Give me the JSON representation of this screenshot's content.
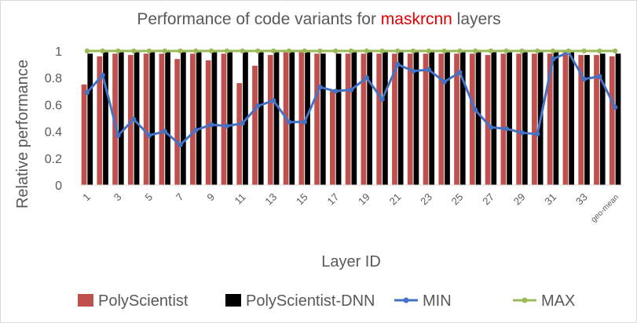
{
  "chart_data": {
    "type": "bar",
    "title_prefix": "Performance of code variants for ",
    "title_highlight": "maskrcnn",
    "title_suffix": " layers",
    "xlabel": "Layer ID",
    "ylabel": "Relative performance",
    "ylim": [
      0,
      1
    ],
    "yticks": [
      0,
      0.2,
      0.4,
      0.6,
      0.8,
      1
    ],
    "ytick_labels": [
      "0",
      "0.2",
      "0.4",
      "0.6",
      "0.8",
      "1"
    ],
    "grid": false,
    "legend_position": "bottom",
    "categories": [
      "1",
      "2",
      "3",
      "4",
      "5",
      "6",
      "7",
      "8",
      "9",
      "10",
      "11",
      "12",
      "13",
      "14",
      "15",
      "16",
      "17",
      "18",
      "19",
      "20",
      "21",
      "22",
      "23",
      "24",
      "25",
      "26",
      "27",
      "28",
      "29",
      "30",
      "31",
      "32",
      "33",
      "34",
      "geo-mean"
    ],
    "xtick_labels": [
      "1",
      "",
      "3",
      "",
      "5",
      "",
      "7",
      "",
      "9",
      "",
      "11",
      "",
      "13",
      "",
      "15",
      "",
      "17",
      "",
      "19",
      "",
      "21",
      "",
      "23",
      "",
      "25",
      "",
      "27",
      "",
      "29",
      "",
      "31",
      "",
      "33",
      "",
      "geo-mean"
    ],
    "series": [
      {
        "name": "PolyScientist",
        "kind": "bar",
        "color": "#c0504d",
        "values": [
          0.75,
          0.96,
          0.98,
          0.97,
          0.98,
          0.98,
          0.94,
          0.98,
          0.93,
          0.98,
          0.76,
          0.89,
          0.97,
          0.99,
          0.99,
          0.98,
          0.7,
          0.98,
          0.98,
          0.98,
          0.98,
          0.98,
          0.98,
          0.98,
          0.98,
          0.98,
          0.97,
          0.98,
          0.98,
          0.98,
          0.98,
          0.99,
          0.97,
          0.97,
          0.96
        ]
      },
      {
        "name": "PolyScientist-DNN",
        "kind": "bar",
        "color": "#000000",
        "values": [
          0.98,
          0.99,
          0.99,
          0.99,
          0.99,
          0.99,
          0.99,
          0.99,
          0.99,
          0.99,
          0.99,
          0.99,
          0.99,
          0.99,
          0.99,
          0.98,
          0.98,
          0.99,
          0.99,
          0.99,
          0.99,
          0.99,
          0.99,
          0.99,
          0.99,
          0.99,
          0.99,
          0.99,
          0.99,
          0.99,
          0.99,
          0.99,
          0.97,
          0.98,
          0.98
        ]
      },
      {
        "name": "MIN",
        "kind": "line",
        "color": "#4472c4",
        "values": [
          0.69,
          0.82,
          0.37,
          0.49,
          0.37,
          0.4,
          0.3,
          0.41,
          0.45,
          0.44,
          0.46,
          0.59,
          0.63,
          0.47,
          0.47,
          0.73,
          0.7,
          0.71,
          0.8,
          0.64,
          0.9,
          0.85,
          0.86,
          0.77,
          0.84,
          0.56,
          0.43,
          0.42,
          0.39,
          0.38,
          0.94,
          0.99,
          0.79,
          0.81,
          0.58
        ]
      },
      {
        "name": "MAX",
        "kind": "line",
        "color": "#9bbb59",
        "values": [
          1,
          1,
          1,
          1,
          1,
          1,
          1,
          1,
          1,
          1,
          1,
          1,
          1,
          1,
          1,
          1,
          1,
          1,
          1,
          1,
          1,
          1,
          1,
          1,
          1,
          1,
          1,
          1,
          1,
          1,
          1,
          1,
          1,
          1,
          1
        ]
      }
    ]
  }
}
